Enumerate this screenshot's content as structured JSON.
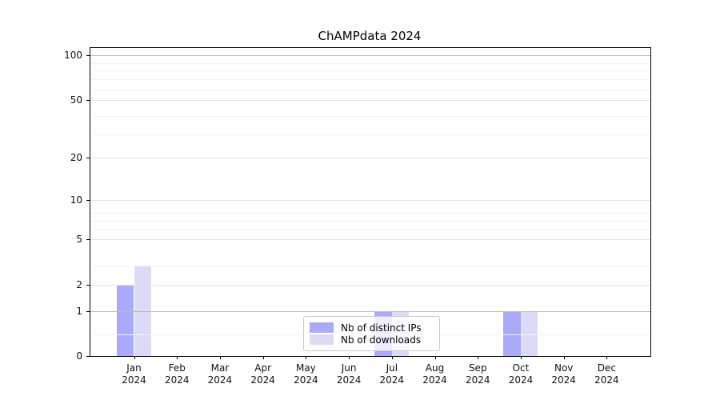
{
  "chart_data": {
    "type": "bar",
    "title": "ChAMPdata 2024",
    "categories": [
      "Jan",
      "Feb",
      "Mar",
      "Apr",
      "May",
      "Jun",
      "Jul",
      "Aug",
      "Sep",
      "Oct",
      "Nov",
      "Dec"
    ],
    "category_year": "2024",
    "series": [
      {
        "name": "Nb of distinct IPs",
        "color": "#aaaaf8",
        "values": [
          2,
          0,
          0,
          0,
          0,
          0,
          1,
          0,
          0,
          1,
          0,
          0
        ]
      },
      {
        "name": "Nb of downloads",
        "color": "#dbdbf8",
        "values": [
          3,
          0,
          0,
          0,
          0,
          0,
          1,
          0,
          0,
          1,
          0,
          0
        ]
      }
    ],
    "y_axis": {
      "scale": "log1p",
      "ticks": [
        0,
        1,
        2,
        5,
        10,
        20,
        50,
        100
      ],
      "tick_labels": [
        "0",
        "1",
        "2",
        "5",
        "10",
        "20",
        "50",
        "100"
      ],
      "ylim": [
        0,
        112
      ],
      "emphasized_gridlines": [
        1,
        100
      ],
      "minor_gridlines": [
        0.4,
        3,
        6,
        7,
        8,
        29,
        39,
        59,
        69,
        79,
        89
      ]
    },
    "xlabel": "",
    "ylabel": "",
    "grid": true,
    "grid_above_bars": true,
    "legend_position": "lower center",
    "bar_width_frac": 0.4,
    "colors": {
      "axis": "#000000",
      "grid_major": "#e3e3e3",
      "grid_minor": "#f2f2f2",
      "grid_emphasized": "#bcbcbc",
      "background": "#ffffff"
    }
  }
}
